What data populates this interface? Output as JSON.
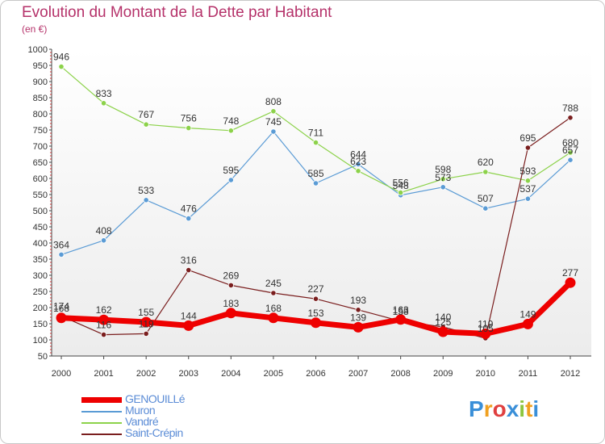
{
  "title": "Evolution du Montant de la Dette par Habitant",
  "subtitle": "(en €)",
  "logo": {
    "text": "Proxiti",
    "letters": [
      "P",
      "r",
      "o",
      "x",
      "i",
      "t",
      "i"
    ],
    "colors": [
      "#3a8fd8",
      "#f0a020",
      "#e04040",
      "#3a8fd8",
      "#8cc63f",
      "#f0a020",
      "#3a8fd8"
    ]
  },
  "chart_data": {
    "type": "line",
    "x": [
      "2000",
      "2001",
      "2002",
      "2003",
      "2004",
      "2005",
      "2006",
      "2007",
      "2008",
      "2009",
      "2010",
      "2011",
      "2012"
    ],
    "ylim": [
      50,
      1000
    ],
    "yticks": [
      50,
      100,
      150,
      200,
      250,
      300,
      350,
      400,
      450,
      500,
      550,
      600,
      650,
      700,
      750,
      800,
      850,
      900,
      950,
      1000
    ],
    "grid": false,
    "legend_position": "bottom-left",
    "series": [
      {
        "name": "GENOUILLé",
        "color": "#ee0000",
        "width": 7,
        "values": [
          168,
          162,
          155,
          144,
          183,
          168,
          153,
          139,
          163,
          125,
          119,
          149,
          277
        ],
        "labels": [
          "168",
          "162",
          "155",
          "144",
          "183",
          "168",
          "153",
          "139",
          "163",
          "125",
          "119",
          "149",
          "277"
        ]
      },
      {
        "name": "Muron",
        "color": "#5a9bd5",
        "width": 1.2,
        "values": [
          364,
          408,
          533,
          476,
          595,
          745,
          585,
          644,
          548,
          573,
          507,
          537,
          657
        ],
        "labels": [
          "364",
          "408",
          "533",
          "476",
          "595",
          "745",
          "585",
          "644",
          "548",
          "573",
          "507",
          "537",
          "657"
        ]
      },
      {
        "name": "Vandré",
        "color": "#8cd24a",
        "width": 1.2,
        "values": [
          946,
          833,
          767,
          756,
          748,
          808,
          711,
          623,
          556,
          598,
          620,
          593,
          680
        ],
        "labels": [
          "946",
          "833",
          "767",
          "756",
          "748",
          "808",
          "711",
          "623",
          "556",
          "598",
          "620",
          "593",
          "680"
        ]
      },
      {
        "name": "Saint-Crépin",
        "color": "#7a1e1e",
        "width": 1.2,
        "values": [
          174,
          116,
          119,
          316,
          269,
          245,
          227,
          193,
          158,
          140,
          105,
          695,
          788
        ],
        "labels": [
          "174",
          "116",
          "119",
          "316",
          "269",
          "245",
          "227",
          "193",
          "158",
          "140",
          "105",
          "695",
          "788"
        ]
      }
    ]
  }
}
